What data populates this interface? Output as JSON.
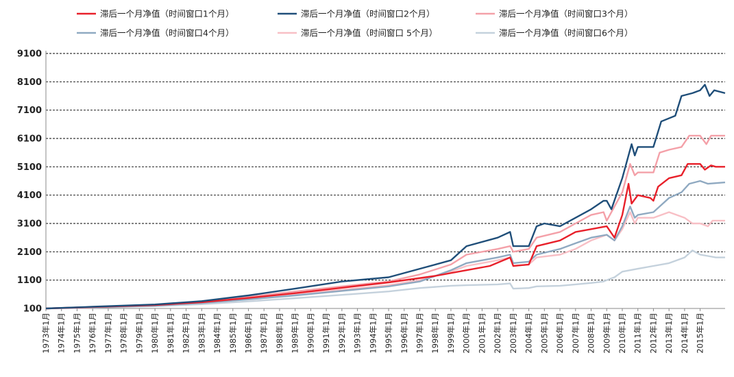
{
  "chart_data": {
    "type": "line",
    "ylim": [
      100,
      9100
    ],
    "y_ticks": [
      100,
      1100,
      2100,
      3100,
      4100,
      5100,
      6100,
      7100,
      8100,
      9100
    ],
    "x_range": [
      1973,
      2016.6
    ],
    "x_tick_labels": [
      "1973年1月",
      "1974年1月",
      "1975年1月",
      "1976年1月",
      "1977年1月",
      "1978年1月",
      "1979年1月",
      "1980年1月",
      "1981年1月",
      "1982年1月",
      "1983年1月",
      "1984年1月",
      "1985年1月",
      "1986年1月",
      "1987年1月",
      "1988年1月",
      "1989年1月",
      "1990年1月",
      "1991年1月",
      "1992年1月",
      "1993年1月",
      "1994年1月",
      "1995年1月",
      "1996年1月",
      "1997年1月",
      "1998年1月",
      "1999年1月",
      "2000年1月",
      "2001年1月",
      "2002年1月",
      "2003年1月",
      "2004年1月",
      "2005年1月",
      "2006年1月",
      "2007年1月",
      "2008年1月",
      "2009年1月",
      "2010年1月",
      "2011年1月",
      "2012年1月",
      "2013年1月",
      "2014年1月",
      "2015年1月"
    ],
    "grid": true,
    "legend_position": "top",
    "series": [
      {
        "name": "滞后一个月净值（时间窗口1个月）",
        "color": "#e8202a",
        "width": 2.4,
        "points": [
          [
            1973,
            100
          ],
          [
            1976,
            150
          ],
          [
            1980,
            220
          ],
          [
            1983,
            320
          ],
          [
            1986,
            470
          ],
          [
            1989,
            640
          ],
          [
            1992,
            830
          ],
          [
            1995,
            1020
          ],
          [
            1998,
            1250
          ],
          [
            2000,
            1450
          ],
          [
            2001.5,
            1600
          ],
          [
            2002.8,
            1900
          ],
          [
            2003,
            1600
          ],
          [
            2004,
            1650
          ],
          [
            2004.5,
            2300
          ],
          [
            2006,
            2500
          ],
          [
            2007,
            2800
          ],
          [
            2008,
            2900
          ],
          [
            2009,
            3000
          ],
          [
            2009.5,
            2600
          ],
          [
            2010,
            3400
          ],
          [
            2010.4,
            4500
          ],
          [
            2010.6,
            3800
          ],
          [
            2011,
            4100
          ],
          [
            2011.8,
            4000
          ],
          [
            2012,
            3900
          ],
          [
            2012.3,
            4400
          ],
          [
            2013,
            4700
          ],
          [
            2013.8,
            4800
          ],
          [
            2014.2,
            5200
          ],
          [
            2015,
            5200
          ],
          [
            2015.3,
            5000
          ],
          [
            2015.7,
            5150
          ],
          [
            2016,
            5100
          ],
          [
            2016.6,
            5100
          ]
        ]
      },
      {
        "name": "滞后一个月净值（时间窗口2个月）",
        "color": "#1f4e79",
        "width": 2.4,
        "points": [
          [
            1973,
            100
          ],
          [
            1976,
            160
          ],
          [
            1980,
            240
          ],
          [
            1983,
            360
          ],
          [
            1986,
            560
          ],
          [
            1989,
            800
          ],
          [
            1992,
            1050
          ],
          [
            1995,
            1200
          ],
          [
            1997,
            1500
          ],
          [
            1999,
            1800
          ],
          [
            2000,
            2300
          ],
          [
            2002,
            2600
          ],
          [
            2002.8,
            2800
          ],
          [
            2003,
            2300
          ],
          [
            2004,
            2300
          ],
          [
            2004.5,
            3000
          ],
          [
            2005,
            3100
          ],
          [
            2006,
            3000
          ],
          [
            2007,
            3300
          ],
          [
            2008,
            3600
          ],
          [
            2008.8,
            3900
          ],
          [
            2009,
            3900
          ],
          [
            2009.3,
            3600
          ],
          [
            2010,
            4700
          ],
          [
            2010.6,
            5900
          ],
          [
            2010.8,
            5500
          ],
          [
            2011,
            5800
          ],
          [
            2012,
            5800
          ],
          [
            2012.5,
            6700
          ],
          [
            2013.4,
            6900
          ],
          [
            2013.8,
            7600
          ],
          [
            2014.5,
            7700
          ],
          [
            2015,
            7800
          ],
          [
            2015.3,
            8000
          ],
          [
            2015.6,
            7600
          ],
          [
            2015.9,
            7800
          ],
          [
            2016.6,
            7700
          ]
        ]
      },
      {
        "name": "滞后一个月净值（时间窗口3个月）",
        "color": "#f4a0a8",
        "width": 2.4,
        "points": [
          [
            1973,
            100
          ],
          [
            1976,
            150
          ],
          [
            1980,
            230
          ],
          [
            1983,
            340
          ],
          [
            1986,
            510
          ],
          [
            1989,
            700
          ],
          [
            1992,
            880
          ],
          [
            1995,
            1050
          ],
          [
            1997,
            1300
          ],
          [
            1999,
            1650
          ],
          [
            2000,
            2000
          ],
          [
            2002,
            2200
          ],
          [
            2002.8,
            2300
          ],
          [
            2003,
            2100
          ],
          [
            2004,
            2200
          ],
          [
            2004.5,
            2600
          ],
          [
            2006,
            2800
          ],
          [
            2007,
            3100
          ],
          [
            2008,
            3400
          ],
          [
            2008.8,
            3500
          ],
          [
            2009,
            3200
          ],
          [
            2010,
            4200
          ],
          [
            2010.5,
            5200
          ],
          [
            2010.8,
            4800
          ],
          [
            2011,
            4900
          ],
          [
            2012,
            4900
          ],
          [
            2012.4,
            5600
          ],
          [
            2013,
            5700
          ],
          [
            2013.8,
            5800
          ],
          [
            2014.3,
            6200
          ],
          [
            2015,
            6200
          ],
          [
            2015.4,
            5900
          ],
          [
            2015.7,
            6200
          ],
          [
            2016.6,
            6200
          ]
        ]
      },
      {
        "name": "滞后一个月净值（时间窗口4个月）",
        "color": "#8fa9c1",
        "width": 2.4,
        "points": [
          [
            1973,
            100
          ],
          [
            1976,
            140
          ],
          [
            1980,
            200
          ],
          [
            1983,
            290
          ],
          [
            1986,
            420
          ],
          [
            1989,
            560
          ],
          [
            1992,
            720
          ],
          [
            1995,
            880
          ],
          [
            1997,
            1050
          ],
          [
            1999,
            1450
          ],
          [
            2000,
            1700
          ],
          [
            2002,
            1900
          ],
          [
            2002.8,
            2000
          ],
          [
            2003,
            1700
          ],
          [
            2004,
            1750
          ],
          [
            2004.5,
            2000
          ],
          [
            2006,
            2200
          ],
          [
            2007,
            2400
          ],
          [
            2008,
            2600
          ],
          [
            2009,
            2700
          ],
          [
            2009.5,
            2500
          ],
          [
            2010,
            3000
          ],
          [
            2010.5,
            3700
          ],
          [
            2010.8,
            3300
          ],
          [
            2011,
            3400
          ],
          [
            2012,
            3500
          ],
          [
            2012.4,
            3700
          ],
          [
            2013,
            4000
          ],
          [
            2013.8,
            4200
          ],
          [
            2014.3,
            4500
          ],
          [
            2015,
            4600
          ],
          [
            2015.5,
            4500
          ],
          [
            2016.6,
            4550
          ]
        ]
      },
      {
        "name": "滞后一个月净值（时间窗口 5个月）",
        "color": "#f8bfc5",
        "width": 2.4,
        "points": [
          [
            1973,
            100
          ],
          [
            1976,
            145
          ],
          [
            1980,
            210
          ],
          [
            1983,
            300
          ],
          [
            1986,
            440
          ],
          [
            1989,
            600
          ],
          [
            1992,
            760
          ],
          [
            1995,
            920
          ],
          [
            1997,
            1100
          ],
          [
            1999,
            1400
          ],
          [
            2000,
            1600
          ],
          [
            2002,
            1800
          ],
          [
            2002.8,
            1900
          ],
          [
            2003,
            1600
          ],
          [
            2004,
            1650
          ],
          [
            2004.5,
            1900
          ],
          [
            2006,
            2000
          ],
          [
            2007,
            2200
          ],
          [
            2008,
            2500
          ],
          [
            2009,
            2700
          ],
          [
            2009.5,
            2500
          ],
          [
            2010,
            2900
          ],
          [
            2010.5,
            3500
          ],
          [
            2010.8,
            3100
          ],
          [
            2011,
            3300
          ],
          [
            2012,
            3300
          ],
          [
            2012.5,
            3400
          ],
          [
            2013,
            3500
          ],
          [
            2014,
            3300
          ],
          [
            2014.5,
            3100
          ],
          [
            2015,
            3100
          ],
          [
            2015.5,
            3000
          ],
          [
            2015.8,
            3200
          ],
          [
            2016.6,
            3200
          ]
        ]
      },
      {
        "name": "滞后一个月净值（时间窗口6个月）",
        "color": "#c4d1dc",
        "width": 2.4,
        "points": [
          [
            1973,
            100
          ],
          [
            1976,
            130
          ],
          [
            1980,
            180
          ],
          [
            1983,
            250
          ],
          [
            1986,
            350
          ],
          [
            1989,
            460
          ],
          [
            1992,
            580
          ],
          [
            1995,
            700
          ],
          [
            1997,
            820
          ],
          [
            1999,
            900
          ],
          [
            2000,
            920
          ],
          [
            2002,
            950
          ],
          [
            2002.8,
            980
          ],
          [
            2003,
            800
          ],
          [
            2004,
            820
          ],
          [
            2004.5,
            880
          ],
          [
            2006,
            900
          ],
          [
            2007,
            950
          ],
          [
            2008,
            1000
          ],
          [
            2008.8,
            1050
          ],
          [
            2009,
            1100
          ],
          [
            2009.5,
            1200
          ],
          [
            2010,
            1400
          ],
          [
            2011,
            1500
          ],
          [
            2012,
            1600
          ],
          [
            2013,
            1700
          ],
          [
            2014,
            1900
          ],
          [
            2014.5,
            2150
          ],
          [
            2015,
            2000
          ],
          [
            2015.5,
            1950
          ],
          [
            2016,
            1900
          ],
          [
            2016.6,
            1900
          ]
        ]
      }
    ]
  }
}
